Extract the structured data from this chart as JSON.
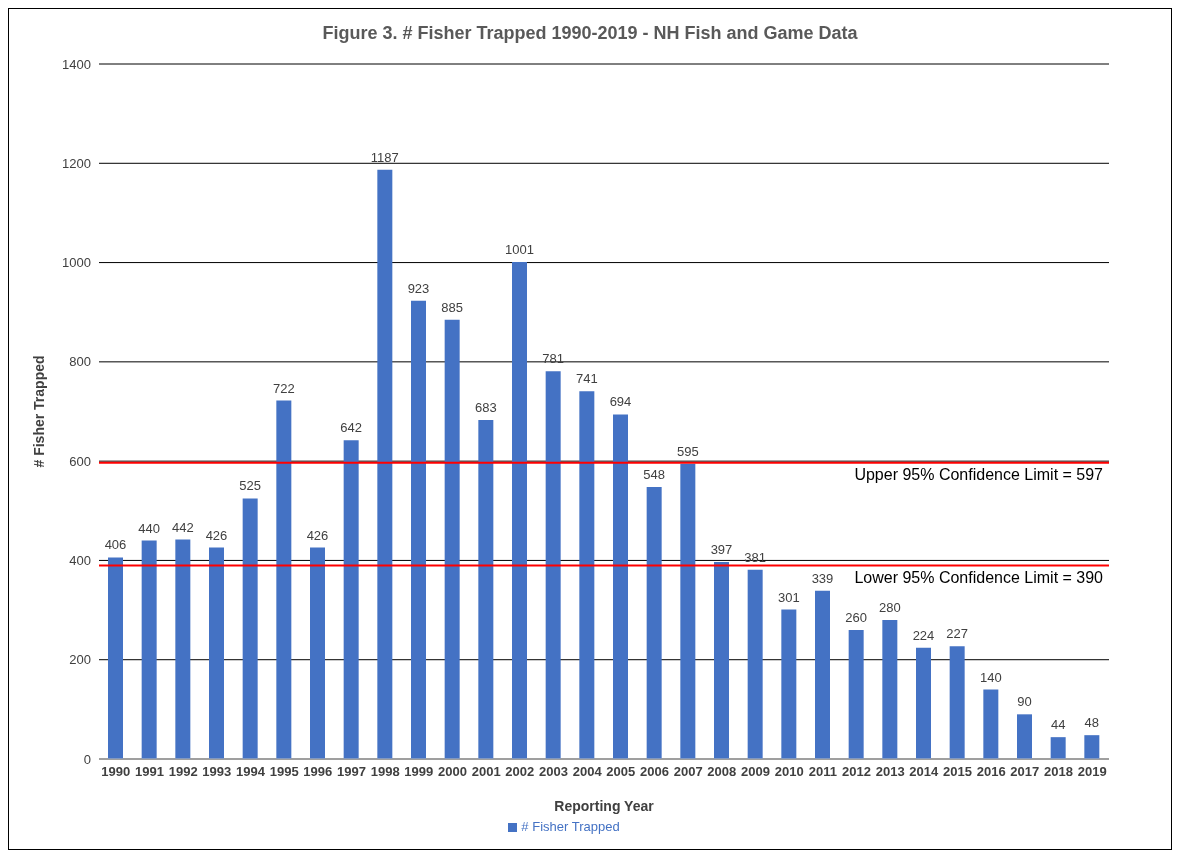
{
  "chart_data": {
    "type": "bar",
    "title": "Figure 3. # Fisher Trapped 1990-2019 - NH Fish and Game Data",
    "xlabel": "Reporting Year",
    "ylabel": "# Fisher Trapped",
    "categories": [
      "1990",
      "1991",
      "1992",
      "1993",
      "1994",
      "1995",
      "1996",
      "1997",
      "1998",
      "1999",
      "2000",
      "2001",
      "2002",
      "2003",
      "2004",
      "2005",
      "2006",
      "2007",
      "2008",
      "2009",
      "2010",
      "2011",
      "2012",
      "2013",
      "2014",
      "2015",
      "2016",
      "2017",
      "2018",
      "2019"
    ],
    "series": [
      {
        "name": "# Fisher Trapped",
        "color": "#4472c4",
        "values": [
          406,
          440,
          442,
          426,
          525,
          722,
          426,
          642,
          1187,
          923,
          885,
          683,
          1001,
          781,
          741,
          694,
          548,
          595,
          397,
          381,
          301,
          339,
          260,
          280,
          224,
          227,
          140,
          90,
          44,
          48
        ]
      }
    ],
    "ylim": [
      0,
      1400
    ],
    "yticks": [
      0,
      200,
      400,
      600,
      800,
      1000,
      1200,
      1400
    ],
    "grid": "y",
    "legend": "bottom",
    "data_labels": true,
    "ref_lines": [
      {
        "axis": "y",
        "value": 597,
        "label": "Upper 95% Confidence Limit = 597",
        "color": "#ff0000"
      },
      {
        "axis": "y",
        "value": 390,
        "label": "Lower 95% Confidence Limit = 390",
        "color": "#ff0000"
      }
    ]
  }
}
